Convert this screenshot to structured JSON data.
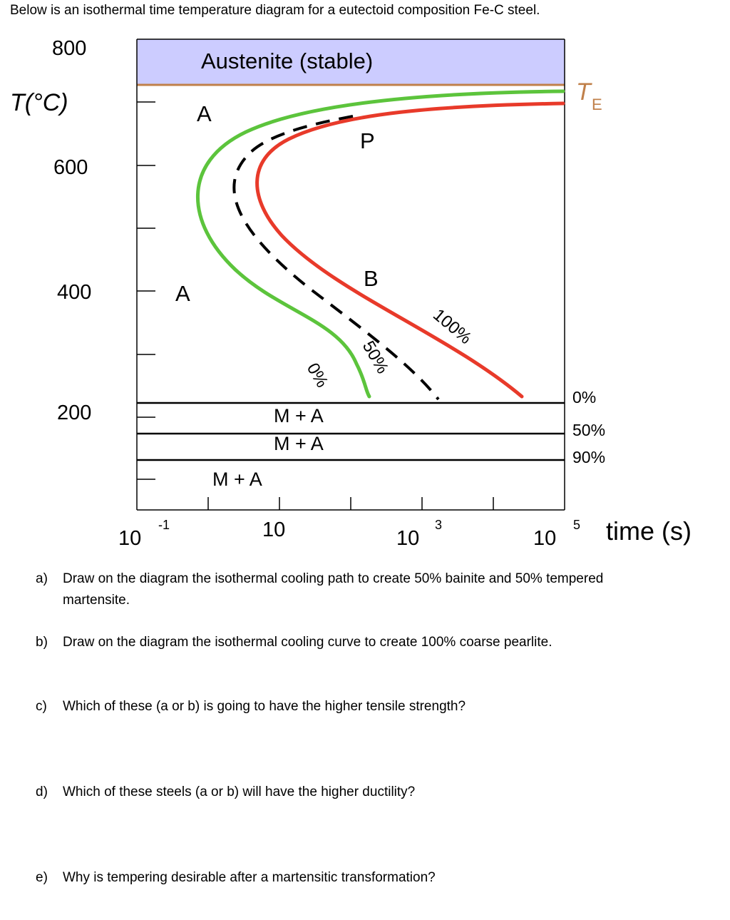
{
  "intro": "Below is an isothermal time temperature diagram for a eutectoid composition Fe-C steel.",
  "diagram": {
    "y_axis_title": "T(°C)",
    "y_tick_labels": [
      "800",
      "600",
      "400",
      "200"
    ],
    "x_tick_base": "10",
    "x_tick_exponents": [
      "-1",
      "",
      "3",
      "5"
    ],
    "x_axis_title": "time (s)",
    "region_labels": {
      "austenite_stable": "Austenite (stable)",
      "a_upper": "A",
      "a_lower": "A",
      "pearlite": "P",
      "bainite": "B",
      "ma_1": "M + A",
      "ma_2": "M + A",
      "ma_3": "M + A"
    },
    "curve_labels": {
      "start": "0%",
      "half": "50%",
      "finish": "100%"
    },
    "eutectoid_label": "T",
    "eutectoid_subscript": "E",
    "martensite_labels": [
      "0%",
      "50%",
      "90%"
    ],
    "colors": {
      "austenite_fill": "#ccccff",
      "eutectoid_line": "#c0804a",
      "start_curve": "#5cc43c",
      "finish_curve": "#e83a2a",
      "half_curve": "#000000"
    }
  },
  "questions": [
    {
      "label": "a)",
      "text": "Draw on the diagram the isothermal cooling path to create 50% bainite and 50% tempered",
      "continuation": "martensite."
    },
    {
      "label": "b)",
      "text": "Draw on the diagram the isothermal cooling curve to create 100% coarse pearlite.",
      "continuation": ""
    },
    {
      "label": "c)",
      "text": "Which of these (a or b) is going to have the higher tensile strength?",
      "continuation": ""
    },
    {
      "label": "d)",
      "text": "Which of these steels (a or b) will have the higher ductility?",
      "continuation": ""
    },
    {
      "label": "e)",
      "text": "Why is tempering desirable after a martensitic transformation?",
      "continuation": ""
    }
  ]
}
